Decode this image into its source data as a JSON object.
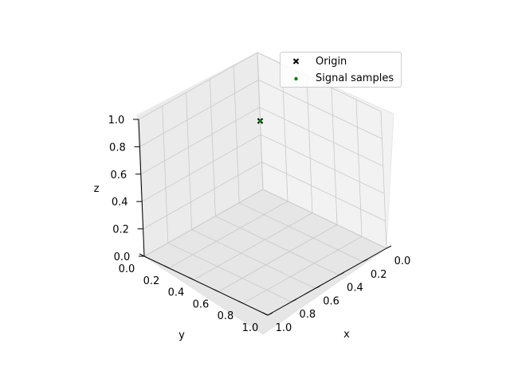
{
  "chart_data": {
    "type": "scatter",
    "projection": "3d",
    "view": {
      "elevation": 30,
      "azimuth": 45
    },
    "xlabel": "x",
    "ylabel": "y",
    "zlabel": "z",
    "xlim": [
      0,
      1
    ],
    "ylim": [
      0,
      1
    ],
    "zlim": [
      0,
      1
    ],
    "xticks": [
      "0.0",
      "0.2",
      "0.4",
      "0.6",
      "0.8",
      "1.0"
    ],
    "yticks": [
      "0.0",
      "0.2",
      "0.4",
      "0.6",
      "0.8",
      "1.0"
    ],
    "zticks": [
      "0.0",
      "0.2",
      "0.4",
      "0.6",
      "0.8",
      "1.0"
    ],
    "grid": true,
    "legend_position": "top-right",
    "series": [
      {
        "name": "Origin",
        "marker": "x",
        "color": "#000000",
        "points": [
          {
            "x": 0,
            "y": 0,
            "z": 0.5
          }
        ]
      },
      {
        "name": "Signal samples",
        "marker": "o",
        "color": "#008000",
        "points": [
          {
            "x": 0,
            "y": 0,
            "z": 0.5
          }
        ]
      }
    ]
  }
}
